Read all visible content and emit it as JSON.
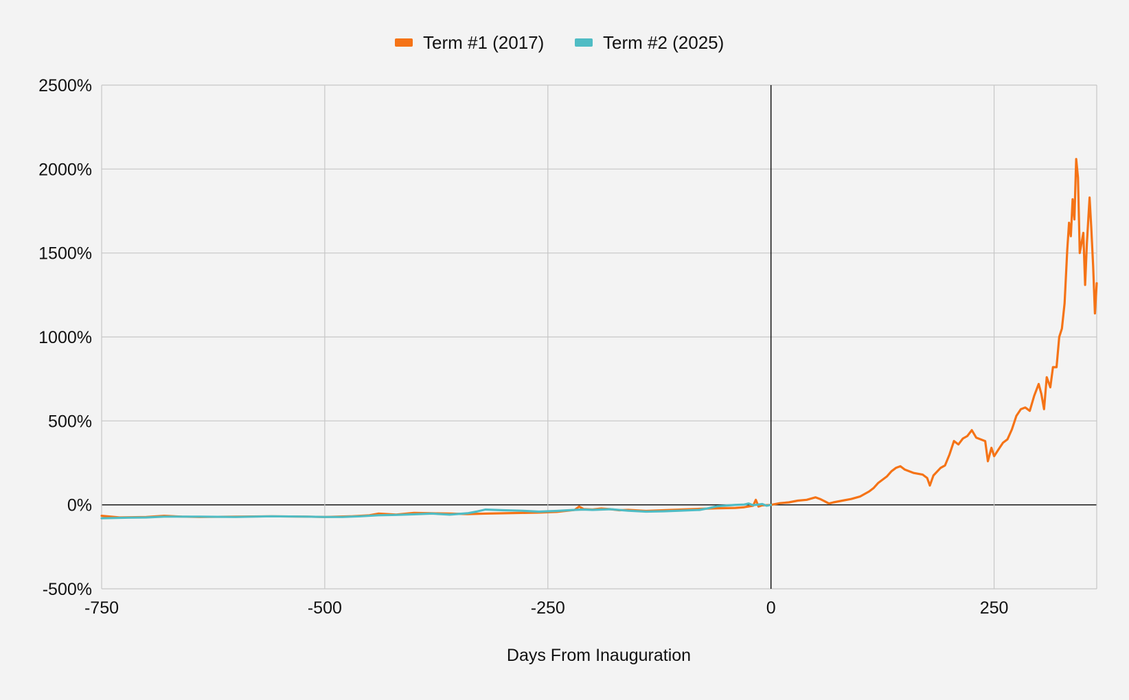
{
  "chart_data": {
    "type": "line",
    "title": "",
    "xlabel": "Days From Inauguration",
    "ylabel": "",
    "xlim": [
      -750,
      365
    ],
    "ylim": [
      -500,
      2500
    ],
    "x_ticks": [
      -750,
      -500,
      -250,
      0,
      250
    ],
    "x_tick_labels": [
      "-750",
      "-500",
      "-250",
      "0",
      "250"
    ],
    "y_ticks": [
      -500,
      0,
      500,
      1000,
      1500,
      2000,
      2500
    ],
    "y_tick_labels": [
      "-500%",
      "0%",
      "500%",
      "1000%",
      "1500%",
      "2000%",
      "2500%"
    ],
    "grid": true,
    "legend_position": "top-center",
    "series": [
      {
        "name": "Term #1 (2017)",
        "color": "#f57316",
        "points": [
          [
            -750,
            -65
          ],
          [
            -730,
            -75
          ],
          [
            -700,
            -72
          ],
          [
            -680,
            -65
          ],
          [
            -660,
            -70
          ],
          [
            -640,
            -72
          ],
          [
            -600,
            -70
          ],
          [
            -560,
            -68
          ],
          [
            -520,
            -70
          ],
          [
            -500,
            -72
          ],
          [
            -470,
            -68
          ],
          [
            -450,
            -62
          ],
          [
            -440,
            -52
          ],
          [
            -420,
            -58
          ],
          [
            -400,
            -48
          ],
          [
            -380,
            -50
          ],
          [
            -360,
            -52
          ],
          [
            -340,
            -55
          ],
          [
            -320,
            -52
          ],
          [
            -300,
            -50
          ],
          [
            -280,
            -48
          ],
          [
            -260,
            -46
          ],
          [
            -240,
            -42
          ],
          [
            -220,
            -30
          ],
          [
            -215,
            -10
          ],
          [
            -210,
            -25
          ],
          [
            -200,
            -28
          ],
          [
            -190,
            -22
          ],
          [
            -180,
            -26
          ],
          [
            -170,
            -32
          ],
          [
            -160,
            -30
          ],
          [
            -140,
            -36
          ],
          [
            -120,
            -32
          ],
          [
            -100,
            -28
          ],
          [
            -80,
            -24
          ],
          [
            -60,
            -20
          ],
          [
            -40,
            -18
          ],
          [
            -30,
            -14
          ],
          [
            -20,
            -5
          ],
          [
            -17,
            30
          ],
          [
            -14,
            -10
          ],
          [
            -10,
            -3
          ],
          [
            0,
            0
          ],
          [
            10,
            10
          ],
          [
            20,
            15
          ],
          [
            30,
            25
          ],
          [
            40,
            30
          ],
          [
            50,
            45
          ],
          [
            55,
            35
          ],
          [
            60,
            22
          ],
          [
            65,
            8
          ],
          [
            70,
            15
          ],
          [
            80,
            25
          ],
          [
            90,
            35
          ],
          [
            100,
            50
          ],
          [
            110,
            80
          ],
          [
            115,
            100
          ],
          [
            120,
            130
          ],
          [
            125,
            150
          ],
          [
            130,
            170
          ],
          [
            135,
            200
          ],
          [
            140,
            220
          ],
          [
            145,
            230
          ],
          [
            150,
            210
          ],
          [
            160,
            190
          ],
          [
            170,
            180
          ],
          [
            175,
            160
          ],
          [
            178,
            115
          ],
          [
            182,
            175
          ],
          [
            190,
            220
          ],
          [
            195,
            235
          ],
          [
            200,
            300
          ],
          [
            205,
            380
          ],
          [
            210,
            360
          ],
          [
            215,
            395
          ],
          [
            220,
            410
          ],
          [
            225,
            445
          ],
          [
            230,
            400
          ],
          [
            235,
            390
          ],
          [
            240,
            380
          ],
          [
            243,
            260
          ],
          [
            247,
            340
          ],
          [
            250,
            290
          ],
          [
            255,
            330
          ],
          [
            260,
            370
          ],
          [
            265,
            390
          ],
          [
            270,
            450
          ],
          [
            275,
            530
          ],
          [
            280,
            570
          ],
          [
            285,
            580
          ],
          [
            290,
            560
          ],
          [
            295,
            650
          ],
          [
            300,
            720
          ],
          [
            303,
            660
          ],
          [
            306,
            570
          ],
          [
            309,
            760
          ],
          [
            313,
            700
          ],
          [
            316,
            820
          ],
          [
            320,
            820
          ],
          [
            323,
            1000
          ],
          [
            326,
            1050
          ],
          [
            329,
            1200
          ],
          [
            332,
            1520
          ],
          [
            334,
            1680
          ],
          [
            336,
            1600
          ],
          [
            338,
            1820
          ],
          [
            340,
            1700
          ],
          [
            342,
            2060
          ],
          [
            344,
            1950
          ],
          [
            346,
            1500
          ],
          [
            348,
            1560
          ],
          [
            350,
            1620
          ],
          [
            352,
            1310
          ],
          [
            354,
            1560
          ],
          [
            357,
            1830
          ],
          [
            359,
            1640
          ],
          [
            361,
            1420
          ],
          [
            363,
            1140
          ],
          [
            365,
            1320
          ]
        ]
      },
      {
        "name": "Term #2 (2025)",
        "color": "#4fbcc4",
        "points": [
          [
            -750,
            -80
          ],
          [
            -720,
            -76
          ],
          [
            -700,
            -75
          ],
          [
            -680,
            -70
          ],
          [
            -640,
            -70
          ],
          [
            -600,
            -72
          ],
          [
            -560,
            -68
          ],
          [
            -520,
            -70
          ],
          [
            -500,
            -72
          ],
          [
            -480,
            -72
          ],
          [
            -460,
            -68
          ],
          [
            -440,
            -62
          ],
          [
            -420,
            -60
          ],
          [
            -400,
            -56
          ],
          [
            -380,
            -52
          ],
          [
            -360,
            -58
          ],
          [
            -340,
            -50
          ],
          [
            -330,
            -40
          ],
          [
            -320,
            -28
          ],
          [
            -300,
            -32
          ],
          [
            -280,
            -35
          ],
          [
            -260,
            -40
          ],
          [
            -240,
            -36
          ],
          [
            -220,
            -30
          ],
          [
            -210,
            -28
          ],
          [
            -200,
            -30
          ],
          [
            -180,
            -26
          ],
          [
            -160,
            -35
          ],
          [
            -140,
            -40
          ],
          [
            -120,
            -38
          ],
          [
            -100,
            -34
          ],
          [
            -80,
            -30
          ],
          [
            -70,
            -20
          ],
          [
            -60,
            -8
          ],
          [
            -50,
            -4
          ],
          [
            -40,
            0
          ],
          [
            -30,
            2
          ],
          [
            -25,
            8
          ],
          [
            -20,
            -2
          ],
          [
            -10,
            5
          ],
          [
            -5,
            -5
          ],
          [
            0,
            0
          ]
        ]
      }
    ]
  }
}
